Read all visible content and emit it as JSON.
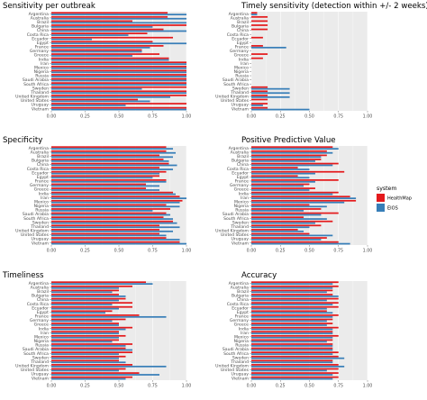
{
  "figure": {
    "legend": {
      "title": "system",
      "entries": [
        {
          "name": "HealthMap",
          "color": "#e41a1c"
        },
        {
          "name": "EIOS",
          "color": "#377eb8"
        }
      ]
    },
    "background_color": "#ebebeb",
    "grid_color": "#ffffff"
  },
  "chart_data": [
    {
      "type": "bar",
      "orientation": "horizontal",
      "title": "Sensitivity per outbreak",
      "xlim": [
        0,
        1
      ],
      "xticks": [
        "0.00",
        "0.25",
        "0.50",
        "0.75",
        "1.00"
      ],
      "categories": [
        "Argentina",
        "Australia",
        "Brazil",
        "Bulgaria",
        "China",
        "Costa Rica",
        "Ecuador",
        "Egypt",
        "France",
        "Germany",
        "Greece",
        "India",
        "Iran",
        "Mexico",
        "Nigeria",
        "Russia",
        "Saudi Arabia",
        "South Africa",
        "Sweden",
        "Thailand",
        "United Kingdom",
        "United States",
        "Uruguay",
        "Vietnam"
      ],
      "series": [
        {
          "name": "HealthMap",
          "values": [
            0.86,
            0.86,
            0.6,
            1.0,
            0.83,
            0.71,
            0.9,
            0.75,
            0.83,
            0.67,
            0.8,
            0.87,
            1.0,
            1.0,
            1.0,
            1.0,
            1.0,
            1.0,
            1.0,
            1.0,
            1.0,
            0.64,
            1.0,
            1.0
          ]
        },
        {
          "name": "EIOS",
          "values": [
            1.0,
            1.0,
            1.0,
            0.75,
            1.0,
            0.57,
            0.3,
            1.0,
            0.73,
            0.67,
            0.6,
            0.87,
            1.0,
            1.0,
            1.0,
            1.0,
            1.0,
            1.0,
            0.67,
            1.0,
            0.88,
            0.73,
            0.55,
            1.0
          ]
        }
      ]
    },
    {
      "type": "bar",
      "orientation": "horizontal",
      "title": "Timely sensitivity (detection within +/- 2 weeks)",
      "xlim": [
        0,
        1
      ],
      "xticks": [
        "0.00",
        "0.25",
        "0.50",
        "0.75",
        "1.00"
      ],
      "categories": [
        "Argentina",
        "Australia",
        "Brazil",
        "Bulgaria",
        "China",
        "Costa Rica",
        "Ecuador",
        "Egypt",
        "France",
        "Germany",
        "Greece",
        "India",
        "Iran",
        "Mexico",
        "Nigeria",
        "Russia",
        "Saudi Arabia",
        "South Africa",
        "Sweden",
        "Thailand",
        "United Kingdom",
        "United States",
        "Uruguay",
        "Vietnam"
      ],
      "series": [
        {
          "name": "HealthMap",
          "values": [
            0.05,
            0.14,
            0.14,
            0.14,
            0.14,
            0.0,
            0.1,
            0.0,
            0.1,
            0.0,
            0.14,
            0.1,
            0.0,
            0.0,
            0.0,
            0.0,
            0.0,
            0.0,
            0.14,
            0.14,
            0.14,
            0.14,
            0.14,
            0.14
          ]
        },
        {
          "name": "EIOS",
          "values": [
            0.05,
            0.0,
            0.0,
            0.0,
            0.0,
            0.0,
            0.0,
            0.0,
            0.3,
            0.0,
            0.0,
            0.0,
            0.0,
            0.0,
            0.0,
            0.0,
            0.0,
            0.0,
            0.33,
            0.33,
            0.33,
            0.0,
            0.1,
            0.5
          ]
        }
      ]
    },
    {
      "type": "bar",
      "orientation": "horizontal",
      "title": "Specificity",
      "xlim": [
        0,
        1
      ],
      "xticks": [
        "0.00",
        "0.25",
        "0.50",
        "0.75",
        "1.00"
      ],
      "categories": [
        "Argentina",
        "Australia",
        "Brazil",
        "Bulgaria",
        "China",
        "Costa Rica",
        "Ecuador",
        "Egypt",
        "France",
        "Germany",
        "Greece",
        "India",
        "Iran",
        "Mexico",
        "Nigeria",
        "Russia",
        "Saudi Arabia",
        "South Africa",
        "Sweden",
        "Thailand",
        "United Kingdom",
        "United States",
        "Uruguay",
        "Vietnam"
      ],
      "series": [
        {
          "name": "HealthMap",
          "values": [
            0.85,
            0.85,
            0.8,
            0.83,
            0.87,
            0.8,
            0.85,
            0.8,
            0.85,
            0.7,
            0.7,
            0.9,
            0.95,
            0.97,
            0.85,
            0.88,
            0.85,
            0.83,
            0.9,
            0.8,
            0.8,
            0.8,
            0.85,
            0.95
          ]
        },
        {
          "name": "EIOS",
          "values": [
            0.9,
            0.92,
            0.9,
            0.87,
            0.93,
            0.9,
            0.8,
            0.75,
            0.85,
            0.8,
            0.8,
            0.92,
            1.0,
            0.95,
            0.95,
            0.75,
            0.88,
            0.9,
            0.93,
            0.95,
            0.9,
            0.85,
            0.95,
            1.0
          ]
        }
      ]
    },
    {
      "type": "bar",
      "orientation": "horizontal",
      "title": "Positive Predictive Value",
      "xlim": [
        0,
        1
      ],
      "xticks": [
        "0.00",
        "0.25",
        "0.50",
        "0.75",
        "1.00"
      ],
      "categories": [
        "Argentina",
        "Australia",
        "Brazil",
        "Bulgaria",
        "China",
        "Costa Rica",
        "Ecuador",
        "Egypt",
        "France",
        "Germany",
        "Greece",
        "India",
        "Iran",
        "Mexico",
        "Nigeria",
        "Russia",
        "Saudi Arabia",
        "South Africa",
        "Sweden",
        "Thailand",
        "United Kingdom",
        "United States",
        "Uruguay",
        "Vietnam"
      ],
      "series": [
        {
          "name": "HealthMap",
          "values": [
            0.7,
            0.65,
            0.65,
            0.6,
            0.75,
            0.4,
            0.8,
            0.4,
            0.75,
            0.5,
            0.55,
            0.75,
            0.85,
            0.9,
            0.5,
            0.6,
            0.75,
            0.45,
            0.7,
            0.6,
            0.4,
            0.5,
            0.65,
            0.75
          ]
        },
        {
          "name": "EIOS",
          "values": [
            0.75,
            0.7,
            0.6,
            0.55,
            0.7,
            0.5,
            0.55,
            0.5,
            0.55,
            0.45,
            0.5,
            0.7,
            0.9,
            0.8,
            0.65,
            0.45,
            0.6,
            0.65,
            0.55,
            0.5,
            0.45,
            0.7,
            0.6,
            0.85
          ]
        }
      ]
    },
    {
      "type": "bar",
      "orientation": "horizontal",
      "title": "Timeliness",
      "xlim": [
        0,
        1
      ],
      "xticks": [
        "0.00",
        "0.25",
        "0.50",
        "0.75",
        "1.00"
      ],
      "categories": [
        "Argentina",
        "Australia",
        "Brazil",
        "Bulgaria",
        "China",
        "Costa Rica",
        "Ecuador",
        "Egypt",
        "France",
        "Germany",
        "Greece",
        "India",
        "Iran",
        "Mexico",
        "Nigeria",
        "Russia",
        "Saudi Arabia",
        "South Africa",
        "Sweden",
        "Thailand",
        "United Kingdom",
        "United States",
        "Uruguay",
        "Vietnam"
      ],
      "series": [
        {
          "name": "HealthMap",
          "values": [
            0.7,
            0.6,
            0.5,
            0.5,
            0.55,
            0.6,
            0.6,
            0.45,
            0.65,
            0.55,
            0.5,
            0.6,
            0.5,
            0.55,
            0.5,
            0.6,
            0.55,
            0.6,
            0.55,
            0.5,
            0.6,
            0.55,
            0.65,
            0.6
          ]
        },
        {
          "name": "EIOS",
          "values": [
            0.75,
            0.5,
            0.45,
            0.55,
            0.5,
            0.45,
            0.5,
            0.4,
            0.85,
            0.45,
            0.5,
            0.55,
            0.5,
            0.5,
            0.45,
            0.55,
            0.6,
            0.5,
            0.5,
            0.55,
            0.85,
            0.5,
            0.8,
            0.55
          ]
        }
      ]
    },
    {
      "type": "bar",
      "orientation": "horizontal",
      "title": "Accuracy",
      "xlim": [
        0,
        1
      ],
      "xticks": [
        "0.00",
        "0.25",
        "0.50",
        "0.75",
        "1.00"
      ],
      "categories": [
        "Argentina",
        "Australia",
        "Brazil",
        "Bulgaria",
        "China",
        "Costa Rica",
        "Ecuador",
        "Egypt",
        "France",
        "Germany",
        "Greece",
        "India",
        "Iran",
        "Mexico",
        "Nigeria",
        "Russia",
        "Saudi Arabia",
        "South Africa",
        "Sweden",
        "Thailand",
        "United Kingdom",
        "United States",
        "Uruguay",
        "Vietnam"
      ],
      "series": [
        {
          "name": "HealthMap",
          "values": [
            0.75,
            0.75,
            0.7,
            0.7,
            0.75,
            0.75,
            0.75,
            0.65,
            0.75,
            0.7,
            0.7,
            0.75,
            0.7,
            0.75,
            0.7,
            0.7,
            0.7,
            0.75,
            0.75,
            0.7,
            0.75,
            0.75,
            0.75,
            0.75
          ]
        },
        {
          "name": "EIOS",
          "values": [
            0.7,
            0.7,
            0.65,
            0.75,
            0.65,
            0.7,
            0.65,
            0.7,
            0.7,
            0.65,
            0.65,
            0.7,
            0.7,
            0.7,
            0.65,
            0.7,
            0.7,
            0.7,
            0.8,
            0.7,
            0.8,
            0.65,
            0.7,
            0.7
          ]
        }
      ]
    }
  ]
}
